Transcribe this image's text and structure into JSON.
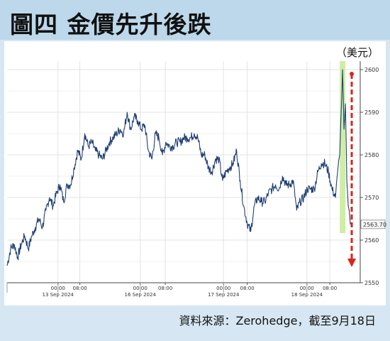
{
  "title": "圖四 金價先升後跌",
  "unit": "（美元）",
  "source": "資料來源：Zerohedge，截至9月18日",
  "colors": {
    "line": "#1f3f73",
    "highlight": "#c9ec9a",
    "arrow": "#d9261c",
    "grid": "#e3e3e3",
    "last_value_box": "#f7f7f7"
  },
  "chart_data": {
    "type": "line",
    "ylim": [
      2550,
      2602
    ],
    "yticks": [
      2550,
      2560,
      2570,
      2580,
      2590,
      2600
    ],
    "ytick_labels": [
      "2550",
      "2560",
      "2570",
      "2580",
      "2590",
      "2600"
    ],
    "xlim": [
      0,
      100
    ],
    "xticks": [
      {
        "x": 14.4,
        "time": "00:00",
        "date": "13 Sep 2024"
      },
      {
        "x": 20.6,
        "time": "08:00",
        "date": ""
      },
      {
        "x": 37.7,
        "time": "00:00",
        "date": "16 Sep 2024"
      },
      {
        "x": 44.8,
        "time": "08:00",
        "date": ""
      },
      {
        "x": 61.3,
        "time": "00:00",
        "date": "17 Sep 2024"
      },
      {
        "x": 68.0,
        "time": "08:00",
        "date": ""
      },
      {
        "x": 84.9,
        "time": "00:00",
        "date": "18 Sep 2024"
      },
      {
        "x": 91.4,
        "time": "08:00",
        "date": ""
      }
    ],
    "last_value_label": "2563.70",
    "last_value": 2563.7,
    "highlight_band": {
      "x0": 94.2,
      "x1": 95.8
    },
    "arrow": {
      "x": 97.6,
      "y_from": 2599,
      "y_to": 2554
    },
    "series": [
      {
        "values": [
          [
            0,
            2554
          ],
          [
            1,
            2558
          ],
          [
            2,
            2559
          ],
          [
            3,
            2556
          ],
          [
            4,
            2559
          ],
          [
            5,
            2561
          ],
          [
            6,
            2558
          ],
          [
            7,
            2561
          ],
          [
            8,
            2563
          ],
          [
            9,
            2565
          ],
          [
            10,
            2563
          ],
          [
            11,
            2567
          ],
          [
            12,
            2570
          ],
          [
            13,
            2568
          ],
          [
            14,
            2571
          ],
          [
            15,
            2573
          ],
          [
            16,
            2569
          ],
          [
            17,
            2573
          ],
          [
            18,
            2573
          ],
          [
            19,
            2577
          ],
          [
            20,
            2581
          ],
          [
            21,
            2579
          ],
          [
            22,
            2585
          ],
          [
            23,
            2582
          ],
          [
            24,
            2583
          ],
          [
            25,
            2581
          ],
          [
            26,
            2580
          ],
          [
            27,
            2579
          ],
          [
            28,
            2581
          ],
          [
            29,
            2583
          ],
          [
            30,
            2584
          ],
          [
            31,
            2585
          ],
          [
            32,
            2586
          ],
          [
            33,
            2585
          ],
          [
            34,
            2590
          ],
          [
            35,
            2586
          ],
          [
            36,
            2589
          ],
          [
            37,
            2588
          ],
          [
            38,
            2586
          ],
          [
            39,
            2587
          ],
          [
            40,
            2581
          ],
          [
            41,
            2579
          ],
          [
            42,
            2585
          ],
          [
            43,
            2584
          ],
          [
            44,
            2580
          ],
          [
            45,
            2583
          ],
          [
            46,
            2582
          ],
          [
            47,
            2582
          ],
          [
            48,
            2583
          ],
          [
            49,
            2583
          ],
          [
            50,
            2584
          ],
          [
            51,
            2584
          ],
          [
            52,
            2584
          ],
          [
            53,
            2585
          ],
          [
            54,
            2584
          ],
          [
            55,
            2580
          ],
          [
            56,
            2580
          ],
          [
            57,
            2577
          ],
          [
            58,
            2576
          ],
          [
            59,
            2579
          ],
          [
            60,
            2579
          ],
          [
            61,
            2574
          ],
          [
            62,
            2576
          ],
          [
            63,
            2577
          ],
          [
            64,
            2578
          ],
          [
            65,
            2581
          ],
          [
            66,
            2574
          ],
          [
            67,
            2568
          ],
          [
            68,
            2564
          ],
          [
            69,
            2562
          ],
          [
            70,
            2568
          ],
          [
            71,
            2570
          ],
          [
            72,
            2569
          ],
          [
            73,
            2569
          ],
          [
            74,
            2571
          ],
          [
            75,
            2572
          ],
          [
            76,
            2573
          ],
          [
            77,
            2572
          ],
          [
            78,
            2575
          ],
          [
            79,
            2573
          ],
          [
            80,
            2573
          ],
          [
            81,
            2574
          ],
          [
            82,
            2567
          ],
          [
            83,
            2569
          ],
          [
            84,
            2570
          ],
          [
            85,
            2572
          ],
          [
            86,
            2572
          ],
          [
            87,
            2572
          ],
          [
            88,
            2576
          ],
          [
            89,
            2578
          ],
          [
            90,
            2578
          ],
          [
            91,
            2576
          ],
          [
            92,
            2572
          ],
          [
            93,
            2570
          ],
          [
            93.6,
            2576
          ],
          [
            94.2,
            2580
          ],
          [
            94.6,
            2590
          ],
          [
            95.0,
            2600
          ],
          [
            95.4,
            2586
          ],
          [
            95.8,
            2592
          ],
          [
            96.2,
            2574
          ],
          [
            96.6,
            2568
          ],
          [
            97.2,
            2563.7
          ]
        ]
      }
    ]
  }
}
